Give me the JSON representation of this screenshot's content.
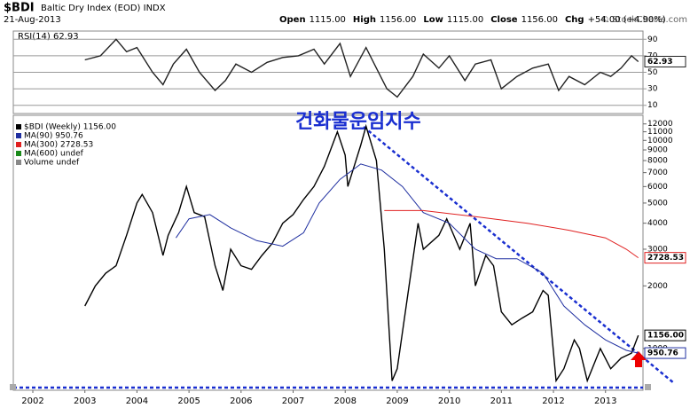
{
  "header": {
    "symbol": "$BDI",
    "name": "Baltic Dry Index (EOD) INDX",
    "date": "21-Aug-2013",
    "quote": [
      {
        "label": "Open",
        "value": "1115.00"
      },
      {
        "label": "High",
        "value": "1156.00"
      },
      {
        "label": "Low",
        "value": "1115.00"
      },
      {
        "label": "Close",
        "value": "1156.00"
      },
      {
        "label": "Chg",
        "value": "+54.00 (+4.90%)"
      }
    ],
    "credit": "© StockCharts.com"
  },
  "chart_data": [
    {
      "type": "line",
      "title": "RSI(14) 62.93",
      "xlim": [
        2001.625,
        2013.72
      ],
      "ylim": [
        0,
        100
      ],
      "yticks": [
        10,
        30,
        50,
        70,
        90
      ],
      "grid": true,
      "series": [
        {
          "name": "RSI(14)",
          "color": "#222222",
          "end_label": "62.93",
          "x": [
            2003.0,
            2003.3,
            2003.6,
            2003.8,
            2004.0,
            2004.3,
            2004.5,
            2004.7,
            2004.95,
            2005.2,
            2005.5,
            2005.7,
            2005.9,
            2006.2,
            2006.5,
            2006.8,
            2007.1,
            2007.4,
            2007.6,
            2007.9,
            2008.1,
            2008.4,
            2008.6,
            2008.8,
            2009.0,
            2009.3,
            2009.5,
            2009.8,
            2010.0,
            2010.3,
            2010.5,
            2010.8,
            2011.0,
            2011.3,
            2011.6,
            2011.9,
            2012.1,
            2012.3,
            2012.6,
            2012.9,
            2013.1,
            2013.3,
            2013.5,
            2013.63
          ],
          "values": [
            65,
            70,
            90,
            75,
            80,
            50,
            35,
            60,
            78,
            50,
            28,
            40,
            60,
            50,
            62,
            68,
            70,
            78,
            60,
            85,
            45,
            80,
            55,
            30,
            20,
            45,
            72,
            55,
            70,
            40,
            60,
            65,
            30,
            45,
            55,
            60,
            28,
            45,
            35,
            50,
            45,
            55,
            70,
            62.93
          ]
        }
      ]
    },
    {
      "type": "line",
      "log_scale": true,
      "annotation": "건화물운임지수",
      "xlim": [
        2001.625,
        2013.72
      ],
      "ylim": [
        630,
        13200
      ],
      "xticks": [
        2002,
        2003,
        2004,
        2005,
        2006,
        2007,
        2008,
        2009,
        2010,
        2011,
        2012,
        2013
      ],
      "yticks": [
        1000,
        2000,
        3000,
        4000,
        5000,
        6000,
        7000,
        8000,
        9000,
        10000,
        11000,
        12000
      ],
      "grid": false,
      "series": [
        {
          "name": "$BDI (Weekly) 1156.00",
          "color": "#000000",
          "end_label": "1156.00",
          "x": [
            2003.0,
            2003.2,
            2003.4,
            2003.6,
            2003.8,
            2004.0,
            2004.1,
            2004.3,
            2004.5,
            2004.6,
            2004.8,
            2004.95,
            2005.1,
            2005.3,
            2005.5,
            2005.65,
            2005.8,
            2006.0,
            2006.2,
            2006.4,
            2006.6,
            2006.8,
            2007.0,
            2007.2,
            2007.4,
            2007.6,
            2007.85,
            2008.0,
            2008.05,
            2008.3,
            2008.4,
            2008.6,
            2008.75,
            2008.9,
            2009.0,
            2009.2,
            2009.4,
            2009.5,
            2009.8,
            2009.95,
            2010.2,
            2010.4,
            2010.5,
            2010.7,
            2010.85,
            2011.0,
            2011.2,
            2011.4,
            2011.6,
            2011.8,
            2011.9,
            2012.05,
            2012.2,
            2012.4,
            2012.5,
            2012.65,
            2012.9,
            2013.1,
            2013.3,
            2013.5,
            2013.63
          ],
          "values": [
            1600,
            2000,
            2300,
            2500,
            3500,
            5000,
            5500,
            4500,
            2800,
            3500,
            4500,
            6000,
            4500,
            4300,
            2500,
            1900,
            3000,
            2500,
            2400,
            2800,
            3200,
            4000,
            4400,
            5200,
            6000,
            7500,
            11000,
            8500,
            6000,
            9500,
            11700,
            8000,
            3000,
            700,
            800,
            1800,
            4000,
            3000,
            3500,
            4200,
            3000,
            4000,
            2000,
            2800,
            2500,
            1500,
            1300,
            1400,
            1500,
            1900,
            1800,
            700,
            800,
            1100,
            1000,
            700,
            1000,
            800,
            900,
            950,
            1156
          ]
        },
        {
          "name": "MA(90) 950.76",
          "color": "#1f2fa0",
          "end_label": "950.76",
          "x": [
            2004.75,
            2005.0,
            2005.4,
            2005.8,
            2006.3,
            2006.8,
            2007.2,
            2007.5,
            2007.9,
            2008.3,
            2008.7,
            2009.1,
            2009.5,
            2010.0,
            2010.5,
            2010.9,
            2011.3,
            2011.8,
            2012.2,
            2012.6,
            2013.0,
            2013.4,
            2013.63
          ],
          "values": [
            3400,
            4200,
            4400,
            3800,
            3300,
            3100,
            3600,
            5000,
            6500,
            7700,
            7200,
            6000,
            4500,
            4000,
            3000,
            2700,
            2700,
            2300,
            1600,
            1300,
            1100,
            980,
            950.76
          ]
        },
        {
          "name": "MA(300) 2728.53",
          "color": "#e02020",
          "end_label": "2728.53",
          "x": [
            2008.75,
            2009.5,
            2010.5,
            2011.5,
            2012.3,
            2013.0,
            2013.4,
            2013.63
          ],
          "values": [
            4600,
            4600,
            4300,
            4000,
            3700,
            3400,
            3000,
            2728.53
          ]
        },
        {
          "name": "MA(600) undef",
          "color": "#1a8a1a",
          "x": [],
          "values": []
        },
        {
          "name": "Volume undef",
          "color": "#888888",
          "x": [],
          "values": []
        }
      ]
    }
  ]
}
